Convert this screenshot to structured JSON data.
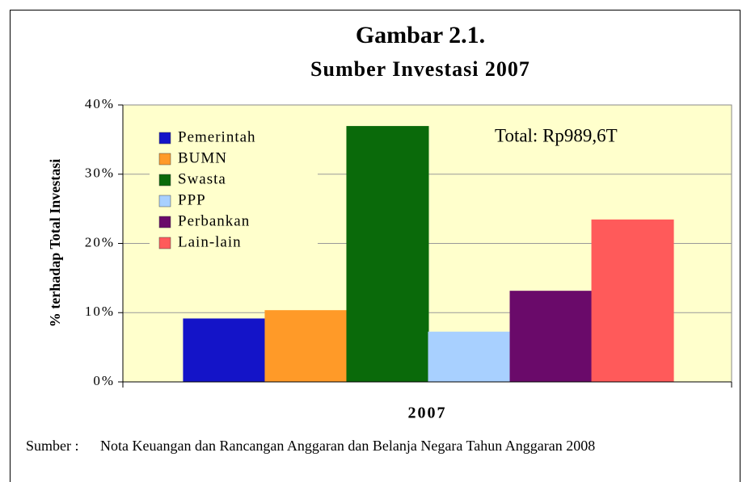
{
  "chart_data": {
    "type": "bar",
    "title": "Gambar 2.1.",
    "subtitle": "Sumber Investasi 2007",
    "y_label": "% terhadap Total Investasi",
    "annotation": "Total: Rp989,6T",
    "categories": [
      "2007"
    ],
    "series": [
      {
        "name": "Pemerintah",
        "color": "#1414c8",
        "values": [
          9.1
        ]
      },
      {
        "name": "BUMN",
        "color": "#ff9a28",
        "values": [
          10.3
        ]
      },
      {
        "name": "Swasta",
        "color": "#0a6a0a",
        "values": [
          36.9
        ]
      },
      {
        "name": "PPP",
        "color": "#a8d0ff",
        "values": [
          7.2
        ]
      },
      {
        "name": "Perbankan",
        "color": "#6a0a6a",
        "values": [
          13.1
        ]
      },
      {
        "name": "Lain-lain",
        "color": "#ff5a5a",
        "values": [
          23.4
        ]
      }
    ],
    "ylim": [
      0,
      40
    ],
    "yticks": [
      {
        "value": 0,
        "label": "0%"
      },
      {
        "value": 10,
        "label": "10%"
      },
      {
        "value": 20,
        "label": "20%"
      },
      {
        "value": 30,
        "label": "30%"
      },
      {
        "value": 40,
        "label": "40%"
      }
    ],
    "grid": true,
    "plot_background": "#ffffcc"
  },
  "source": {
    "label": "Sumber :",
    "text": "Nota Keuangan dan Rancangan Anggaran dan Belanja  Negara Tahun Anggaran 2008"
  }
}
